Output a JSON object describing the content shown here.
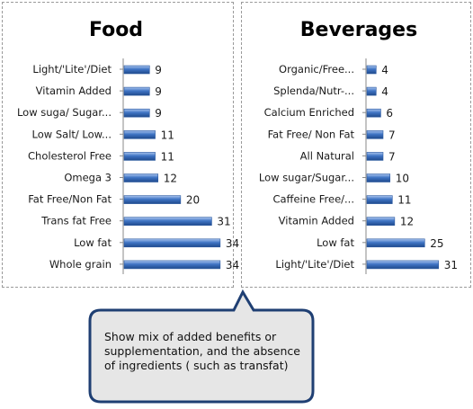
{
  "chart_data": [
    {
      "type": "bar",
      "orientation": "horizontal",
      "title": "Food",
      "categories": [
        "Light/'Lite'/Diet",
        "Vitamin Added",
        "Low suga/ Sugar...",
        "Low Salt/ Low...",
        "Cholesterol Free",
        "Omega 3",
        "Fat Free/Non Fat",
        "Trans fat Free",
        "Low fat",
        "Whole grain"
      ],
      "values": [
        9,
        9,
        9,
        11,
        11,
        12,
        20,
        31,
        34,
        34
      ],
      "xlim": [
        0,
        35
      ],
      "grid": false,
      "bar_color": "#3f74c4"
    },
    {
      "type": "bar",
      "orientation": "horizontal",
      "title": "Beverages",
      "categories": [
        "Organic/Free...",
        "Splenda/Nutr-...",
        "Calcium Enriched",
        "Fat Free/ Non Fat",
        "All Natural",
        "Low sugar/Sugar...",
        "Caffeine Free/...",
        "Vitamin Added",
        "Low fat",
        "Light/'Lite'/Diet"
      ],
      "values": [
        4,
        4,
        6,
        7,
        7,
        10,
        11,
        12,
        25,
        31
      ],
      "xlim": [
        0,
        35
      ],
      "grid": false,
      "bar_color": "#3f74c4"
    }
  ],
  "callout": {
    "text": "Show mix of added benefits or supplementation, and the absence of ingredients ( such as transfat)",
    "fill_color": "#e6e6e6",
    "border_color": "#1f3f73"
  }
}
